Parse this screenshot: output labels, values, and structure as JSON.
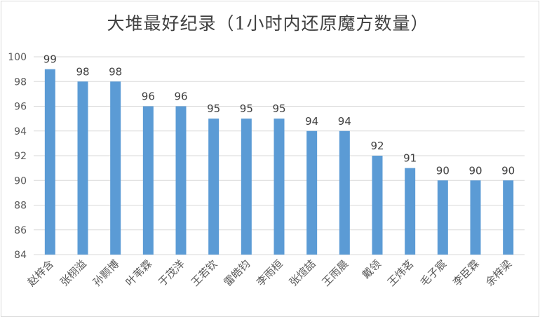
{
  "chart_data": {
    "type": "bar",
    "title": "大堆最好纪录（1小时内还原魔方数量）",
    "xlabel": "",
    "ylabel": "",
    "ylim": [
      84,
      100
    ],
    "yticks": [
      84,
      86,
      88,
      90,
      92,
      94,
      96,
      98,
      100
    ],
    "categories": [
      "赵梓含",
      "张栩溢",
      "孙颢博",
      "叶苇霖",
      "于茂洋",
      "王若钦",
      "雷皓钧",
      "李雨桓",
      "张煊喆",
      "王雨晨",
      "戴领",
      "王炜茗",
      "毛子宸",
      "李臣霖",
      "余梓梁"
    ],
    "values": [
      99,
      98,
      98,
      96,
      96,
      95,
      95,
      95,
      94,
      94,
      92,
      91,
      90,
      90,
      90
    ],
    "bar_color": "#5b9bd5",
    "grid": true,
    "legend": "none"
  }
}
